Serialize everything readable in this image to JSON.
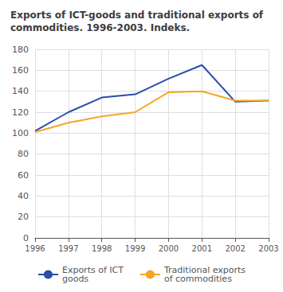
{
  "chart_data": {
    "type": "line",
    "title": "Exports of ICT-goods and traditional exports of\ncommodities. 1996-2003. Indeks.",
    "categories": [
      "1996",
      "1997",
      "1998",
      "1999",
      "2000",
      "2001",
      "2002",
      "2003"
    ],
    "series": [
      {
        "name": "Exports of ICT\ngoods",
        "color": "#2b4cac",
        "values": [
          102,
          120,
          134,
          137,
          152,
          165,
          130,
          131
        ]
      },
      {
        "name": "Traditional exports\nof commodities",
        "color": "#f5a623",
        "values": [
          101,
          110,
          116,
          120,
          139,
          140,
          131,
          131
        ]
      }
    ],
    "ylim": [
      0,
      180
    ],
    "yticks": [
      0,
      20,
      40,
      60,
      80,
      100,
      120,
      140,
      160,
      180
    ],
    "grid": true,
    "legend": "bottom"
  }
}
